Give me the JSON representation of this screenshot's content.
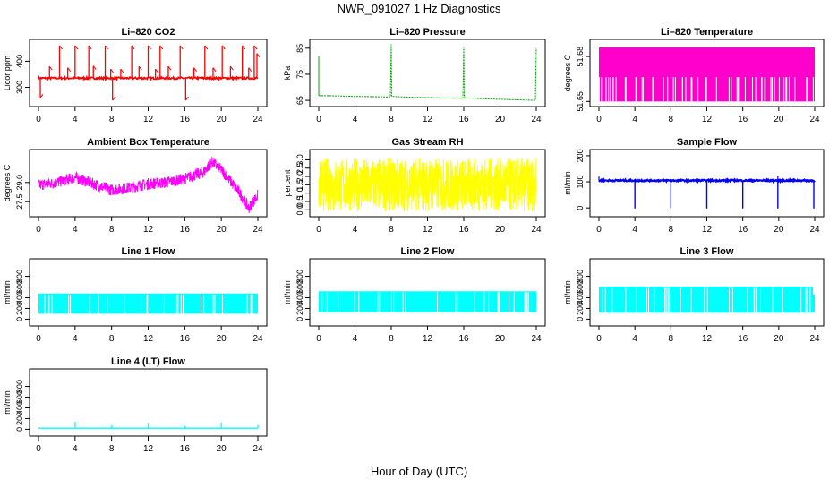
{
  "page": {
    "title": "NWR_091027  1 Hz Diagnostics",
    "xlabel": "Hour of Day (UTC)"
  },
  "chart_data": [
    {
      "id": "co2",
      "type": "line",
      "title": "Li–820 CO2",
      "ylabel": "Licor ppm",
      "color": "#ff0000",
      "xlim": [
        0,
        24
      ],
      "ylim": [
        240,
        470
      ],
      "yticks": [
        300,
        400
      ],
      "xticks": [
        0,
        4,
        8,
        12,
        16,
        20,
        24
      ],
      "baseline": 335,
      "noise": 4,
      "spikes": [
        {
          "x": 0.2,
          "y": 260
        },
        {
          "x": 1.2,
          "y": 380
        },
        {
          "x": 2.3,
          "y": 460
        },
        {
          "x": 3.2,
          "y": 375
        },
        {
          "x": 4.0,
          "y": 460
        },
        {
          "x": 5.5,
          "y": 460
        },
        {
          "x": 6.0,
          "y": 382
        },
        {
          "x": 7.3,
          "y": 460
        },
        {
          "x": 7.9,
          "y": 370
        },
        {
          "x": 8.1,
          "y": 250
        },
        {
          "x": 9.0,
          "y": 370
        },
        {
          "x": 10.2,
          "y": 460
        },
        {
          "x": 11.0,
          "y": 380
        },
        {
          "x": 12.0,
          "y": 460
        },
        {
          "x": 12.8,
          "y": 370
        },
        {
          "x": 13.3,
          "y": 460
        },
        {
          "x": 14.2,
          "y": 380
        },
        {
          "x": 15.5,
          "y": 460
        },
        {
          "x": 16.1,
          "y": 250
        },
        {
          "x": 17.0,
          "y": 375
        },
        {
          "x": 18.2,
          "y": 460
        },
        {
          "x": 19.1,
          "y": 375
        },
        {
          "x": 20.1,
          "y": 460
        },
        {
          "x": 21.0,
          "y": 380
        },
        {
          "x": 22.3,
          "y": 460
        },
        {
          "x": 23.0,
          "y": 375
        },
        {
          "x": 23.6,
          "y": 460
        },
        {
          "x": 23.9,
          "y": 430
        }
      ],
      "series": [
        {
          "name": "",
          "values": []
        }
      ]
    },
    {
      "id": "pressure",
      "type": "line",
      "title": "Li–820 Pressure",
      "ylabel": "kPa",
      "color": "#00aa00",
      "xlim": [
        0,
        24
      ],
      "ylim": [
        64,
        87
      ],
      "yticks": [
        65,
        75,
        85
      ],
      "xticks": [
        0,
        4,
        8,
        12,
        16,
        20,
        24
      ],
      "points": [
        [
          0,
          66.8
        ],
        [
          2,
          66.7
        ],
        [
          4,
          66.5
        ],
        [
          6,
          66.4
        ],
        [
          7.9,
          66.3
        ],
        [
          8.0,
          86.5
        ],
        [
          8.05,
          66.5
        ],
        [
          10,
          66.2
        ],
        [
          12,
          66.1
        ],
        [
          14,
          65.9
        ],
        [
          15.9,
          65.8
        ],
        [
          16.0,
          85.5
        ],
        [
          16.05,
          66.0
        ],
        [
          18,
          65.6
        ],
        [
          20,
          65.4
        ],
        [
          22,
          65.2
        ],
        [
          23.9,
          65.0
        ],
        [
          24.0,
          85.0
        ]
      ],
      "spikes_start": {
        "x": 0,
        "y": 82
      },
      "series": [
        {
          "name": "",
          "values": []
        }
      ]
    },
    {
      "id": "li820temp",
      "type": "area",
      "title": "Li–820 Temperature",
      "ylabel": "degrees C",
      "color": "#ff00cc",
      "xlim": [
        0,
        24
      ],
      "ylim": [
        51.649,
        51.689
      ],
      "yticks": [
        51.65,
        51.68
      ],
      "xticks": [
        0,
        4,
        8,
        12,
        16,
        20,
        24
      ],
      "upper": 51.686,
      "lower": 51.65,
      "series": [
        {
          "name": "",
          "values": []
        }
      ]
    },
    {
      "id": "ambient",
      "type": "line",
      "title": "Ambient Box Temperature",
      "ylabel": "degrees C",
      "color": "#ff00ff",
      "xlim": [
        0,
        24
      ],
      "ylim": [
        26.6,
        31.3
      ],
      "yticks": [
        27.5,
        29.0
      ],
      "xticks": [
        0,
        4,
        8,
        12,
        16,
        20,
        24
      ],
      "points": [
        [
          0,
          28.8
        ],
        [
          2,
          29.0
        ],
        [
          4,
          29.4
        ],
        [
          6,
          28.9
        ],
        [
          8,
          28.4
        ],
        [
          10,
          28.6
        ],
        [
          12,
          28.9
        ],
        [
          14,
          29.0
        ],
        [
          16,
          29.3
        ],
        [
          18,
          29.8
        ],
        [
          19,
          30.6
        ],
        [
          20,
          30.0
        ],
        [
          22,
          28.2
        ],
        [
          23,
          27.0
        ],
        [
          24,
          28.0
        ]
      ],
      "noise": 0.45,
      "series": [
        {
          "name": "",
          "values": []
        }
      ]
    },
    {
      "id": "rh",
      "type": "line",
      "title": "Gas Stream RH",
      "ylabel": "percent",
      "color": "#ffff00",
      "xlim": [
        0,
        24
      ],
      "ylim": [
        -0.2,
        3.4
      ],
      "yticks": [
        0.0,
        0.5,
        1.0,
        1.5,
        2.0,
        2.5,
        3.0
      ],
      "xticks": [
        0,
        4,
        8,
        12,
        16,
        20,
        24
      ],
      "center": 1.5,
      "spread": 1.6,
      "series": [
        {
          "name": "",
          "values": []
        }
      ]
    },
    {
      "id": "sampleflow",
      "type": "line",
      "title": "Sample Flow",
      "ylabel": "ml/min",
      "color": "#0000ff",
      "xlim": [
        0,
        24
      ],
      "ylim": [
        -20,
        210
      ],
      "yticks": [
        0,
        100,
        200
      ],
      "xticks": [
        0,
        4,
        8,
        12,
        16,
        20,
        24
      ],
      "baseline": 105,
      "noise": 3,
      "dips": [
        4.0,
        8.0,
        12.0,
        16.0,
        19.9,
        23.9
      ],
      "series": [
        {
          "name": "",
          "values": []
        }
      ]
    },
    {
      "id": "line1",
      "type": "area",
      "title": "Line 1 Flow",
      "ylabel": "ml/min",
      "color": "#00ffff",
      "xlim": [
        0,
        24
      ],
      "ylim": [
        -60,
        1060
      ],
      "yticks": [
        0,
        200,
        400,
        600,
        800
      ],
      "xticks": [
        0,
        4,
        8,
        12,
        16,
        20,
        24
      ],
      "upper": 480,
      "lower": 100,
      "series": [
        {
          "name": "",
          "values": []
        }
      ]
    },
    {
      "id": "line2",
      "type": "area",
      "title": "Line 2 Flow",
      "ylabel": "ml/min",
      "color": "#00ffff",
      "xlim": [
        0,
        24
      ],
      "ylim": [
        -60,
        1060
      ],
      "yticks": [
        0,
        200,
        400,
        600,
        800
      ],
      "xticks": [
        0,
        4,
        8,
        12,
        16,
        20,
        24
      ],
      "upper": 520,
      "lower": 130,
      "series": [
        {
          "name": "",
          "values": []
        }
      ]
    },
    {
      "id": "line3",
      "type": "area",
      "title": "Line 3 Flow",
      "ylabel": "ml/min",
      "color": "#00ffff",
      "xlim": [
        0,
        24
      ],
      "ylim": [
        -60,
        1060
      ],
      "yticks": [
        0,
        200,
        400,
        600,
        800
      ],
      "xticks": [
        0,
        4,
        8,
        12,
        16,
        20,
        24
      ],
      "upper": 610,
      "lower": 120,
      "series": [
        {
          "name": "",
          "values": []
        }
      ]
    },
    {
      "id": "line4",
      "type": "line",
      "title": "Line 4 (LT) Flow",
      "ylabel": "ml/min",
      "color": "#00ffff",
      "xlim": [
        0,
        24
      ],
      "ylim": [
        -60,
        1060
      ],
      "yticks": [
        0,
        200,
        400,
        600,
        800
      ],
      "xticks": [
        0,
        4,
        8,
        12,
        16,
        20,
        24
      ],
      "baseline": 20,
      "spikes": [
        {
          "x": 4.0,
          "y": 140
        },
        {
          "x": 8.0,
          "y": 70
        },
        {
          "x": 12.0,
          "y": 120
        },
        {
          "x": 16.0,
          "y": 60
        },
        {
          "x": 20.0,
          "y": 130
        },
        {
          "x": 24.0,
          "y": 80
        }
      ],
      "series": [
        {
          "name": "",
          "values": []
        }
      ]
    }
  ]
}
